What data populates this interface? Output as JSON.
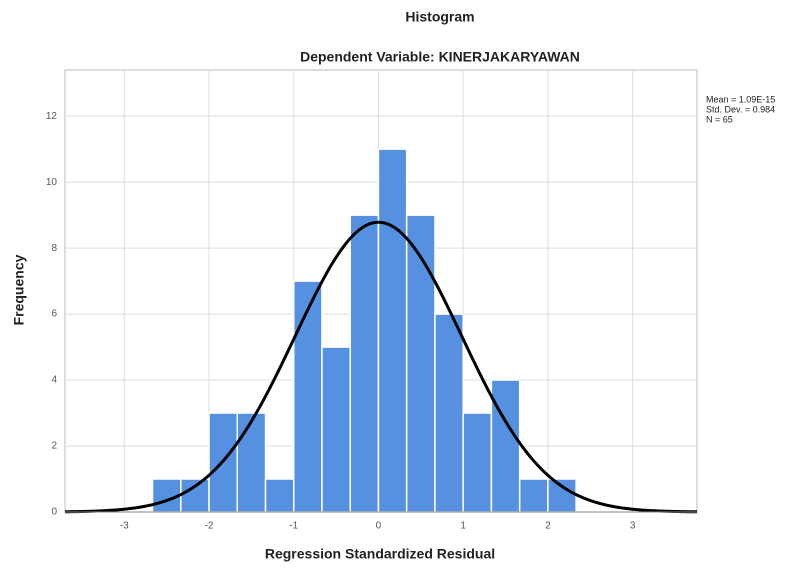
{
  "chart_data": {
    "type": "histogram",
    "title": "Histogram",
    "subtitle": "Dependent Variable: KINERJAKARYAWAN",
    "x_label": "Regression Standardized Residual",
    "y_label": "Frequency",
    "bins": [
      -2.667,
      -2.333,
      -2,
      -1.667,
      -1.333,
      -1,
      -0.667,
      -0.333,
      0,
      0.333,
      0.667,
      1,
      1.333,
      1.667,
      2,
      2.333
    ],
    "values": [
      1,
      1,
      3,
      3,
      1,
      7,
      5,
      9,
      11,
      9,
      6,
      3,
      4,
      1,
      1
    ],
    "color": "#5591e0",
    "xlim": [
      -3.7,
      3.76
    ],
    "ylim": [
      0,
      13.4
    ],
    "xticks": [
      -3,
      -2,
      -1,
      0,
      1,
      2,
      3
    ],
    "yticks": [
      0,
      2,
      4,
      6,
      8,
      10,
      12
    ],
    "grid": true,
    "normal_curve": {
      "mean": 1.09e-15,
      "sd": 0.984,
      "n": 65,
      "color": "#000000"
    },
    "stats": [
      "Mean = 1.09E-15",
      "Std. Dev. = 0.984",
      "N = 65"
    ]
  }
}
